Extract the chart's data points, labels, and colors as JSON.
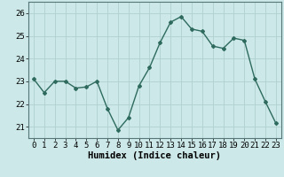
{
  "x": [
    0,
    1,
    2,
    3,
    4,
    5,
    6,
    7,
    8,
    9,
    10,
    11,
    12,
    13,
    14,
    15,
    16,
    17,
    18,
    19,
    20,
    21,
    22,
    23
  ],
  "y": [
    23.1,
    22.5,
    23.0,
    23.0,
    22.7,
    22.75,
    23.0,
    21.8,
    20.85,
    21.4,
    22.8,
    23.6,
    24.7,
    25.6,
    25.85,
    25.3,
    25.2,
    24.55,
    24.45,
    24.9,
    24.8,
    23.1,
    22.1,
    21.15
  ],
  "line_color": "#2e6b5e",
  "marker": "D",
  "marker_size": 2.0,
  "bg_color": "#cce8e8",
  "grid_color": "#b0d0d0",
  "xlabel": "Humidex (Indice chaleur)",
  "xlim": [
    -0.5,
    23.5
  ],
  "ylim": [
    20.5,
    26.5
  ],
  "yticks": [
    21,
    22,
    23,
    24,
    25,
    26
  ],
  "xticks": [
    0,
    1,
    2,
    3,
    4,
    5,
    6,
    7,
    8,
    9,
    10,
    11,
    12,
    13,
    14,
    15,
    16,
    17,
    18,
    19,
    20,
    21,
    22,
    23
  ],
  "xlabel_fontsize": 7.5,
  "tick_fontsize": 6.5,
  "line_width": 1.0
}
